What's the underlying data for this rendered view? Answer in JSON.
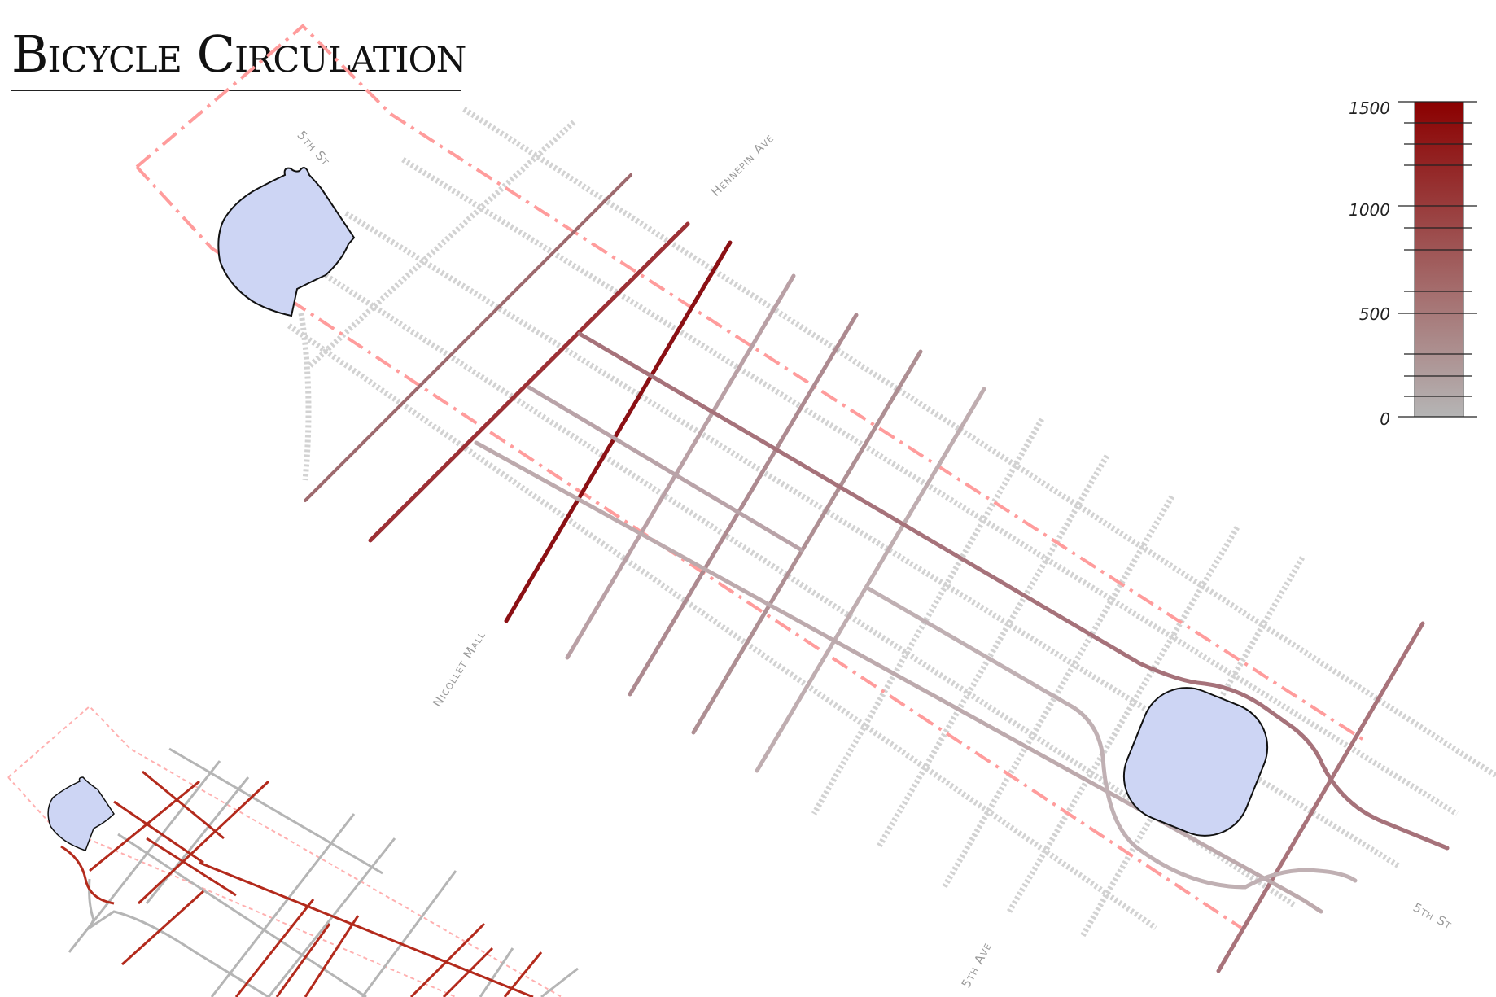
{
  "title": "Bicycle Circulation",
  "street_labels": {
    "fifth_st_top": "5th St",
    "hennepin": "Hennepin Ave",
    "nicollet": "Nicollet Mall",
    "fifth_ave": "5th Ave",
    "fifth_st_bottom": "5th St"
  },
  "legend": {
    "ticks": [
      "1500",
      "1000",
      "500",
      "0"
    ],
    "color_high": "#8b0000",
    "color_low": "#b5b5b5"
  },
  "colors": {
    "park_fill": "#cdd5f4",
    "dashed_route": "#ff8c8c",
    "inset_high": "#b32a1c",
    "inset_low": "#b5b5b5",
    "gray_street": "#cfcfcf"
  }
}
